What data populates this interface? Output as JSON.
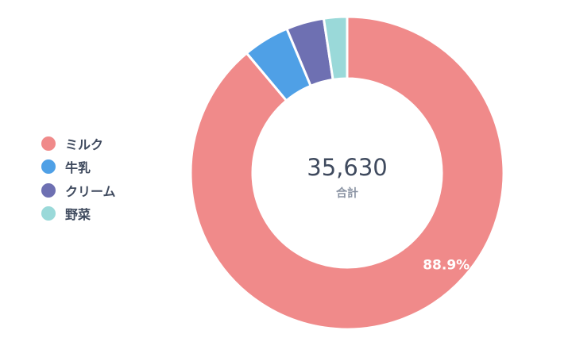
{
  "chart_data": {
    "type": "pie",
    "variant": "donut",
    "categories": [
      "ミルク",
      "牛乳",
      "クリーム",
      "野菜"
    ],
    "values": [
      31675,
      1710,
      1390,
      855
    ],
    "colors": [
      "#f08a8a",
      "#4fa0e6",
      "#6e70b2",
      "#9ad9d9"
    ],
    "total": {
      "value": "35,630",
      "label": "合計"
    },
    "slice_labels": [
      "88.9%",
      "",
      "",
      ""
    ],
    "legend": "left",
    "title": ""
  }
}
